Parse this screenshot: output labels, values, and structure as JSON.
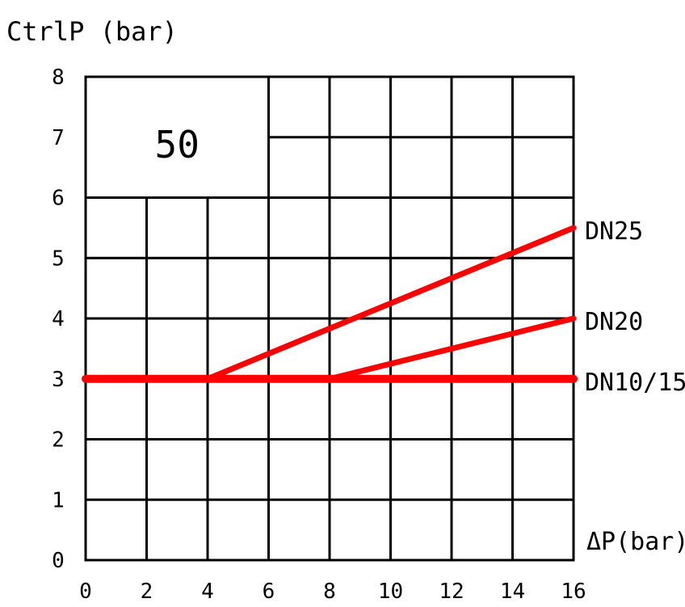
{
  "chart_data": {
    "type": "line",
    "ylabel": "CtrlP (bar)",
    "xlabel": "ΔP(bar)",
    "annotation": "50",
    "xlim": [
      0,
      16
    ],
    "ylim": [
      0,
      8
    ],
    "xticks": [
      "0",
      "2",
      "4",
      "6",
      "8",
      "10",
      "12",
      "14",
      "16"
    ],
    "yticks": [
      "0",
      "1",
      "2",
      "3",
      "4",
      "5",
      "6",
      "7",
      "8"
    ],
    "grid": true,
    "series": [
      {
        "name": "DN25",
        "color": "#ff0000",
        "x": [
          4,
          16
        ],
        "y": [
          3,
          5.5
        ]
      },
      {
        "name": "DN20",
        "color": "#ff0000",
        "x": [
          8,
          16
        ],
        "y": [
          3,
          4
        ]
      },
      {
        "name": "DN10/15",
        "color": "#ff0000",
        "x": [
          0,
          16
        ],
        "y": [
          3,
          3
        ]
      }
    ]
  }
}
